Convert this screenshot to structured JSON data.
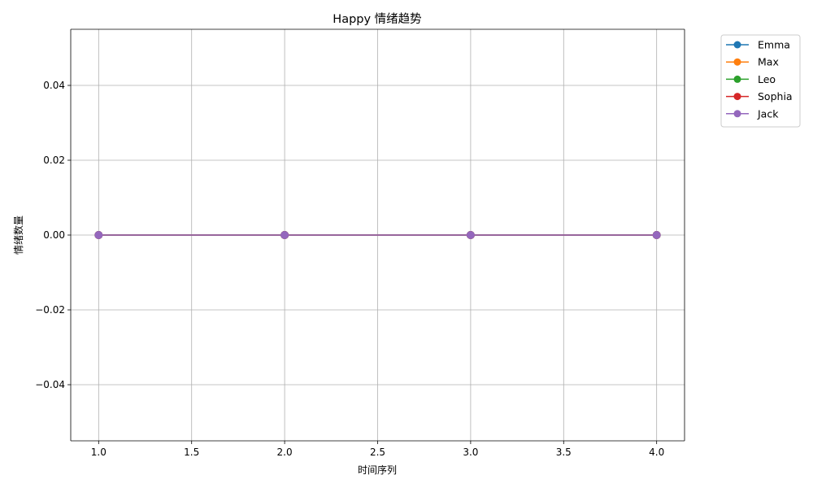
{
  "chart_data": {
    "type": "line",
    "title": "Happy 情绪趋势",
    "xlabel": "时间序列",
    "ylabel": "情绪数量",
    "x": [
      1,
      2,
      3,
      4
    ],
    "xlim": [
      0.85,
      4.15
    ],
    "ylim": [
      -0.055,
      0.055
    ],
    "xticks": [
      1.0,
      1.5,
      2.0,
      2.5,
      3.0,
      3.5,
      4.0
    ],
    "xtick_labels": [
      "1.0",
      "1.5",
      "2.0",
      "2.5",
      "3.0",
      "3.5",
      "4.0"
    ],
    "yticks": [
      -0.04,
      -0.02,
      0.0,
      0.02,
      0.04
    ],
    "ytick_labels": [
      "−0.04",
      "−0.02",
      "0.00",
      "0.02",
      "0.04"
    ],
    "grid": true,
    "legend_position": "outside-top-right",
    "series": [
      {
        "name": "Emma",
        "color": "#1f77b4",
        "marker": "circle",
        "values": [
          0,
          0,
          0,
          0
        ]
      },
      {
        "name": "Max",
        "color": "#ff7f0e",
        "marker": "circle",
        "values": [
          0,
          0,
          0,
          0
        ]
      },
      {
        "name": "Leo",
        "color": "#2ca02c",
        "marker": "circle",
        "values": [
          0,
          0,
          0,
          0
        ]
      },
      {
        "name": "Sophia",
        "color": "#d62728",
        "marker": "circle",
        "values": [
          0,
          0,
          0,
          0
        ]
      },
      {
        "name": "Jack",
        "color": "#9467bd",
        "marker": "circle",
        "values": [
          0,
          0,
          0,
          0
        ]
      }
    ]
  }
}
